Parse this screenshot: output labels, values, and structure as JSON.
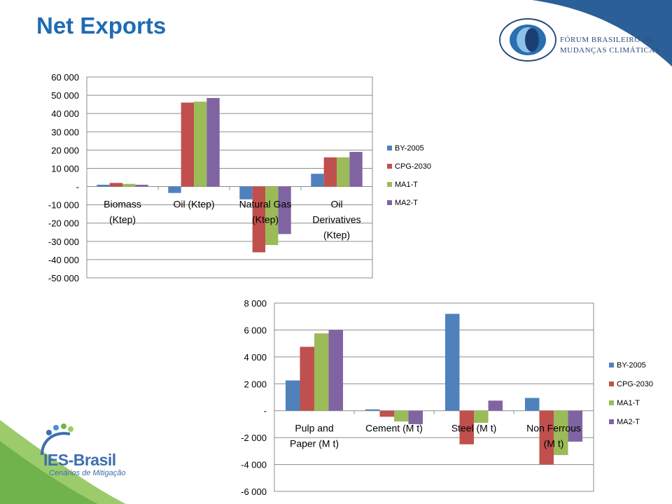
{
  "slide": {
    "title": "Net Exports"
  },
  "logo": {
    "line1": "Fórum Brasileiro de",
    "line2": "Mudanças Climáticas"
  },
  "ies_logo": {
    "name": "IES-Brasil",
    "tagline": "Cenários de Mitigação"
  },
  "colors": {
    "title": "#1f6bb3",
    "BY-2005": "#4f81bd",
    "CPG-2030": "#c0504d",
    "MA1-T": "#9bbb59",
    "MA2-T": "#8064a2"
  },
  "chart_data": [
    {
      "type": "bar",
      "categories": [
        "Biomass (Ktep)",
        "Oil (Ktep)",
        "Natural Gas (Ktep)",
        "Oil Derivatives (Ktep)"
      ],
      "series": [
        {
          "name": "BY-2005",
          "values": [
            1000,
            -3500,
            -7000,
            7000
          ]
        },
        {
          "name": "CPG-2030",
          "values": [
            2000,
            46000,
            -36000,
            16000
          ]
        },
        {
          "name": "MA1-T",
          "values": [
            1500,
            46500,
            -32000,
            16000
          ]
        },
        {
          "name": "MA2-T",
          "values": [
            1000,
            48500,
            -26000,
            19000
          ]
        }
      ],
      "yticks": [
        "60 000",
        "50 000",
        "40 000",
        "30 000",
        "20 000",
        "10 000",
        "-",
        "-10 000",
        "-20 000",
        "-30 000",
        "-40 000",
        "-50 000"
      ],
      "ylim": [
        -50000,
        60000
      ],
      "grid": true,
      "legend": "right"
    },
    {
      "type": "bar",
      "categories": [
        "Pulp and Paper (M t)",
        "Cement (M t)",
        "Steel (M t)",
        "Non Ferrous (M t)"
      ],
      "series": [
        {
          "name": "BY-2005",
          "values": [
            2250,
            100,
            7200,
            950
          ]
        },
        {
          "name": "CPG-2030",
          "values": [
            4750,
            -450,
            -2500,
            -4000
          ]
        },
        {
          "name": "MA1-T",
          "values": [
            5750,
            -800,
            -900,
            -3300
          ]
        },
        {
          "name": "MA2-T",
          "values": [
            6000,
            -1000,
            750,
            -2300
          ]
        }
      ],
      "yticks": [
        "8 000",
        "6 000",
        "4 000",
        "2 000",
        "-",
        "-2 000",
        "-4 000",
        "-6 000"
      ],
      "ylim": [
        -6000,
        8000
      ],
      "grid": true,
      "legend": "right"
    }
  ]
}
